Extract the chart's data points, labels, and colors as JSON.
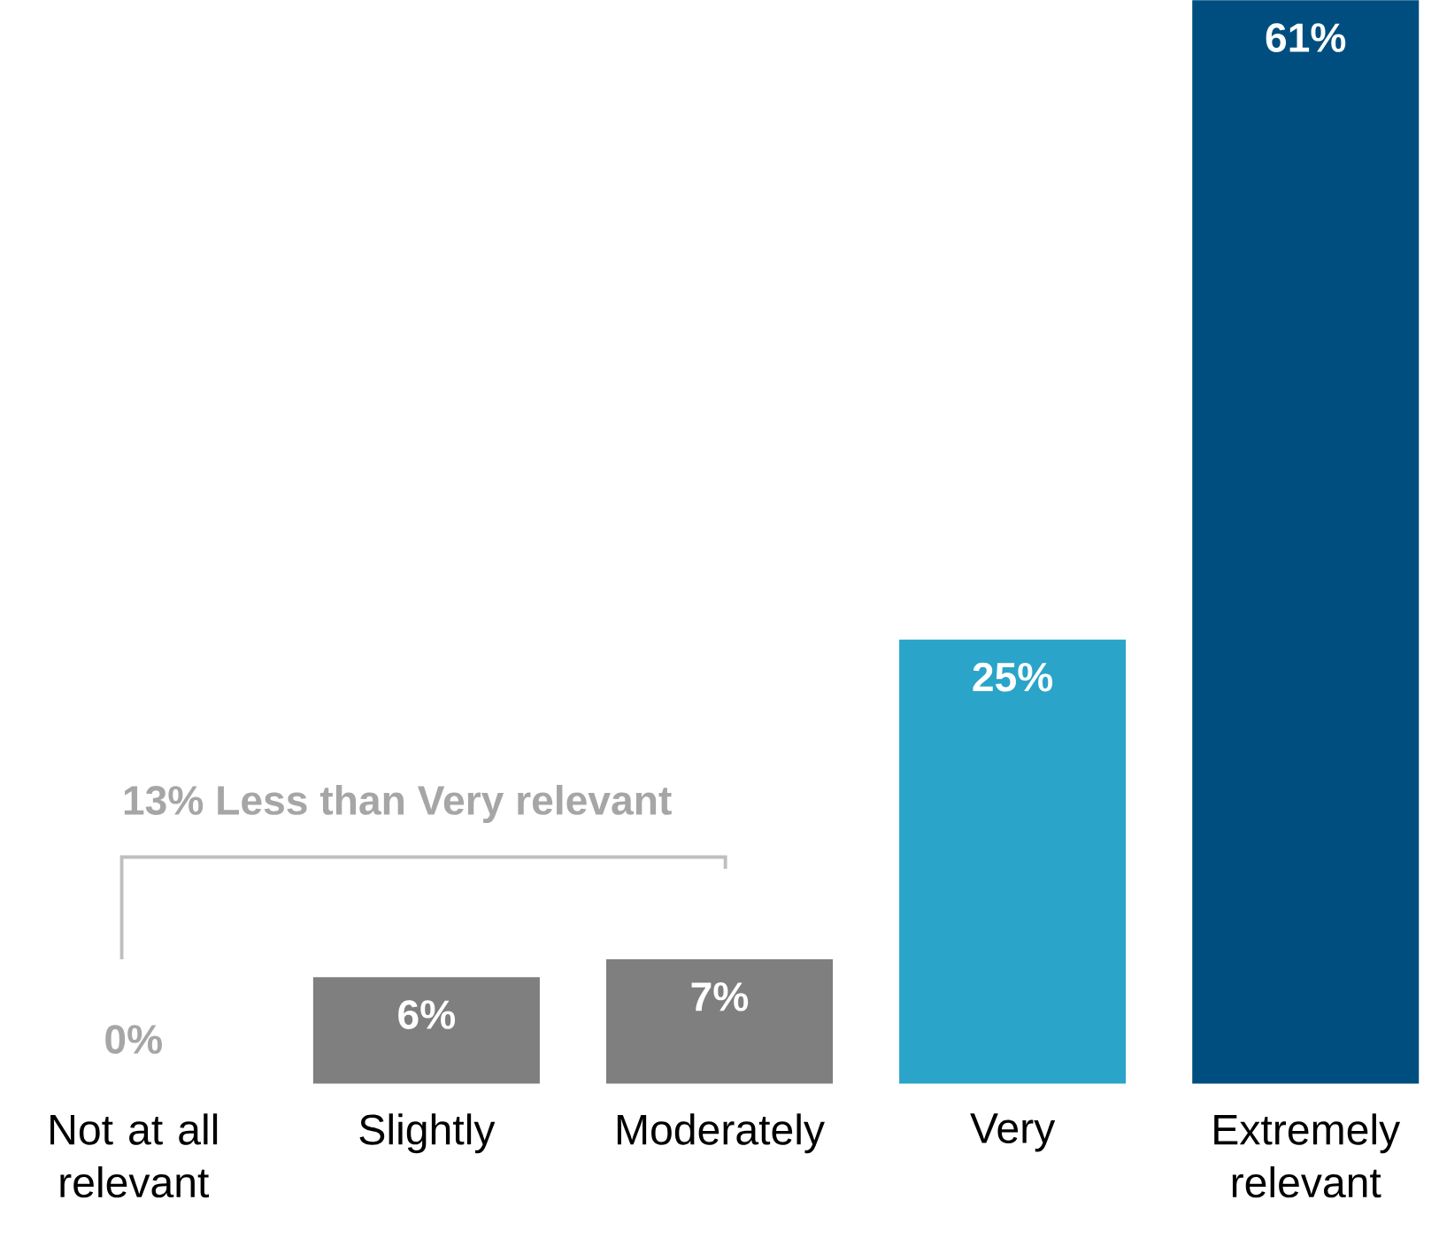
{
  "chart_data": {
    "type": "bar",
    "categories": [
      "Not at all relevant",
      "Slightly",
      "Moderately",
      "Very",
      "Extremely relevant"
    ],
    "values": [
      0,
      6,
      7,
      25,
      61
    ],
    "colors": [
      "#7f7f7f",
      "#7f7f7f",
      "#7f7f7f",
      "#2aa4c9",
      "#004e7f"
    ],
    "value_labels": [
      "0%",
      "6%",
      "7%",
      "25%",
      "61%"
    ],
    "annotations": [
      "13% Less than Very relevant"
    ]
  }
}
